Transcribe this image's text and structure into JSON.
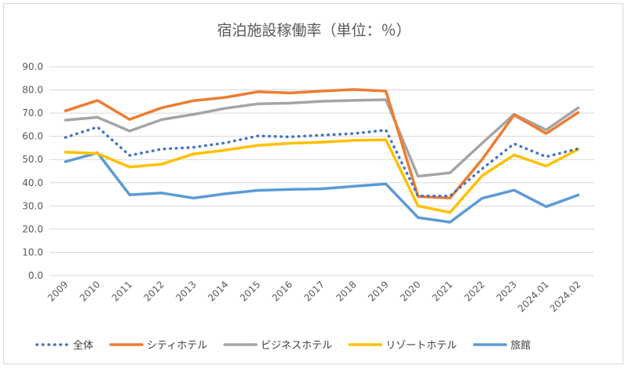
{
  "chart_data": {
    "type": "line",
    "title": "宿泊施設稼働率（単位：％）",
    "xlabel": "",
    "ylabel": "",
    "ylim": [
      0,
      90
    ],
    "ytick_step": 10,
    "ytick_labels": [
      "0.0",
      "10.0",
      "20.0",
      "30.0",
      "40.0",
      "50.0",
      "60.0",
      "70.0",
      "80.0",
      "90.0"
    ],
    "grid": true,
    "legend_position": "bottom",
    "categories": [
      "2009",
      "2010",
      "2011",
      "2012",
      "2013",
      "2014",
      "2015",
      "2016",
      "2017",
      "2018",
      "2019",
      "2020",
      "2021",
      "2022",
      "2023",
      "2024.01",
      "2024.02"
    ],
    "series": [
      {
        "name": "全体",
        "color": "#4472c4",
        "dashed": true,
        "values": [
          59.5,
          64.0,
          51.8,
          54.5,
          55.3,
          57.2,
          60.2,
          59.8,
          60.5,
          61.2,
          62.7,
          34.3,
          34.3,
          46.0,
          56.8,
          51.2,
          54.7
        ]
      },
      {
        "name": "シティホテル",
        "color": "#ed7d31",
        "dashed": false,
        "values": [
          71.0,
          75.5,
          67.3,
          72.3,
          75.4,
          76.8,
          79.2,
          78.7,
          79.5,
          80.2,
          79.5,
          34.1,
          33.4,
          50.0,
          69.2,
          61.2,
          70.3
        ]
      },
      {
        "name": "ビジネスホテル",
        "color": "#a5a5a5",
        "dashed": false,
        "values": [
          67.0,
          68.2,
          62.3,
          67.2,
          69.5,
          72.1,
          74.0,
          74.3,
          75.1,
          75.5,
          75.8,
          42.8,
          44.3,
          57.0,
          69.5,
          62.8,
          72.3
        ]
      },
      {
        "name": "リゾートホテル",
        "color": "#ffc000",
        "dashed": false,
        "values": [
          53.2,
          52.6,
          46.8,
          48.0,
          52.4,
          54.1,
          56.1,
          57.0,
          57.5,
          58.3,
          58.5,
          30.0,
          27.2,
          43.0,
          52.0,
          47.2,
          54.4
        ]
      },
      {
        "name": "旅館",
        "color": "#5b9bd5",
        "dashed": false,
        "values": [
          49.1,
          52.9,
          34.8,
          35.6,
          33.4,
          35.3,
          36.7,
          37.1,
          37.4,
          38.5,
          39.5,
          25.0,
          23.0,
          33.3,
          36.8,
          29.7,
          34.7
        ]
      }
    ]
  }
}
